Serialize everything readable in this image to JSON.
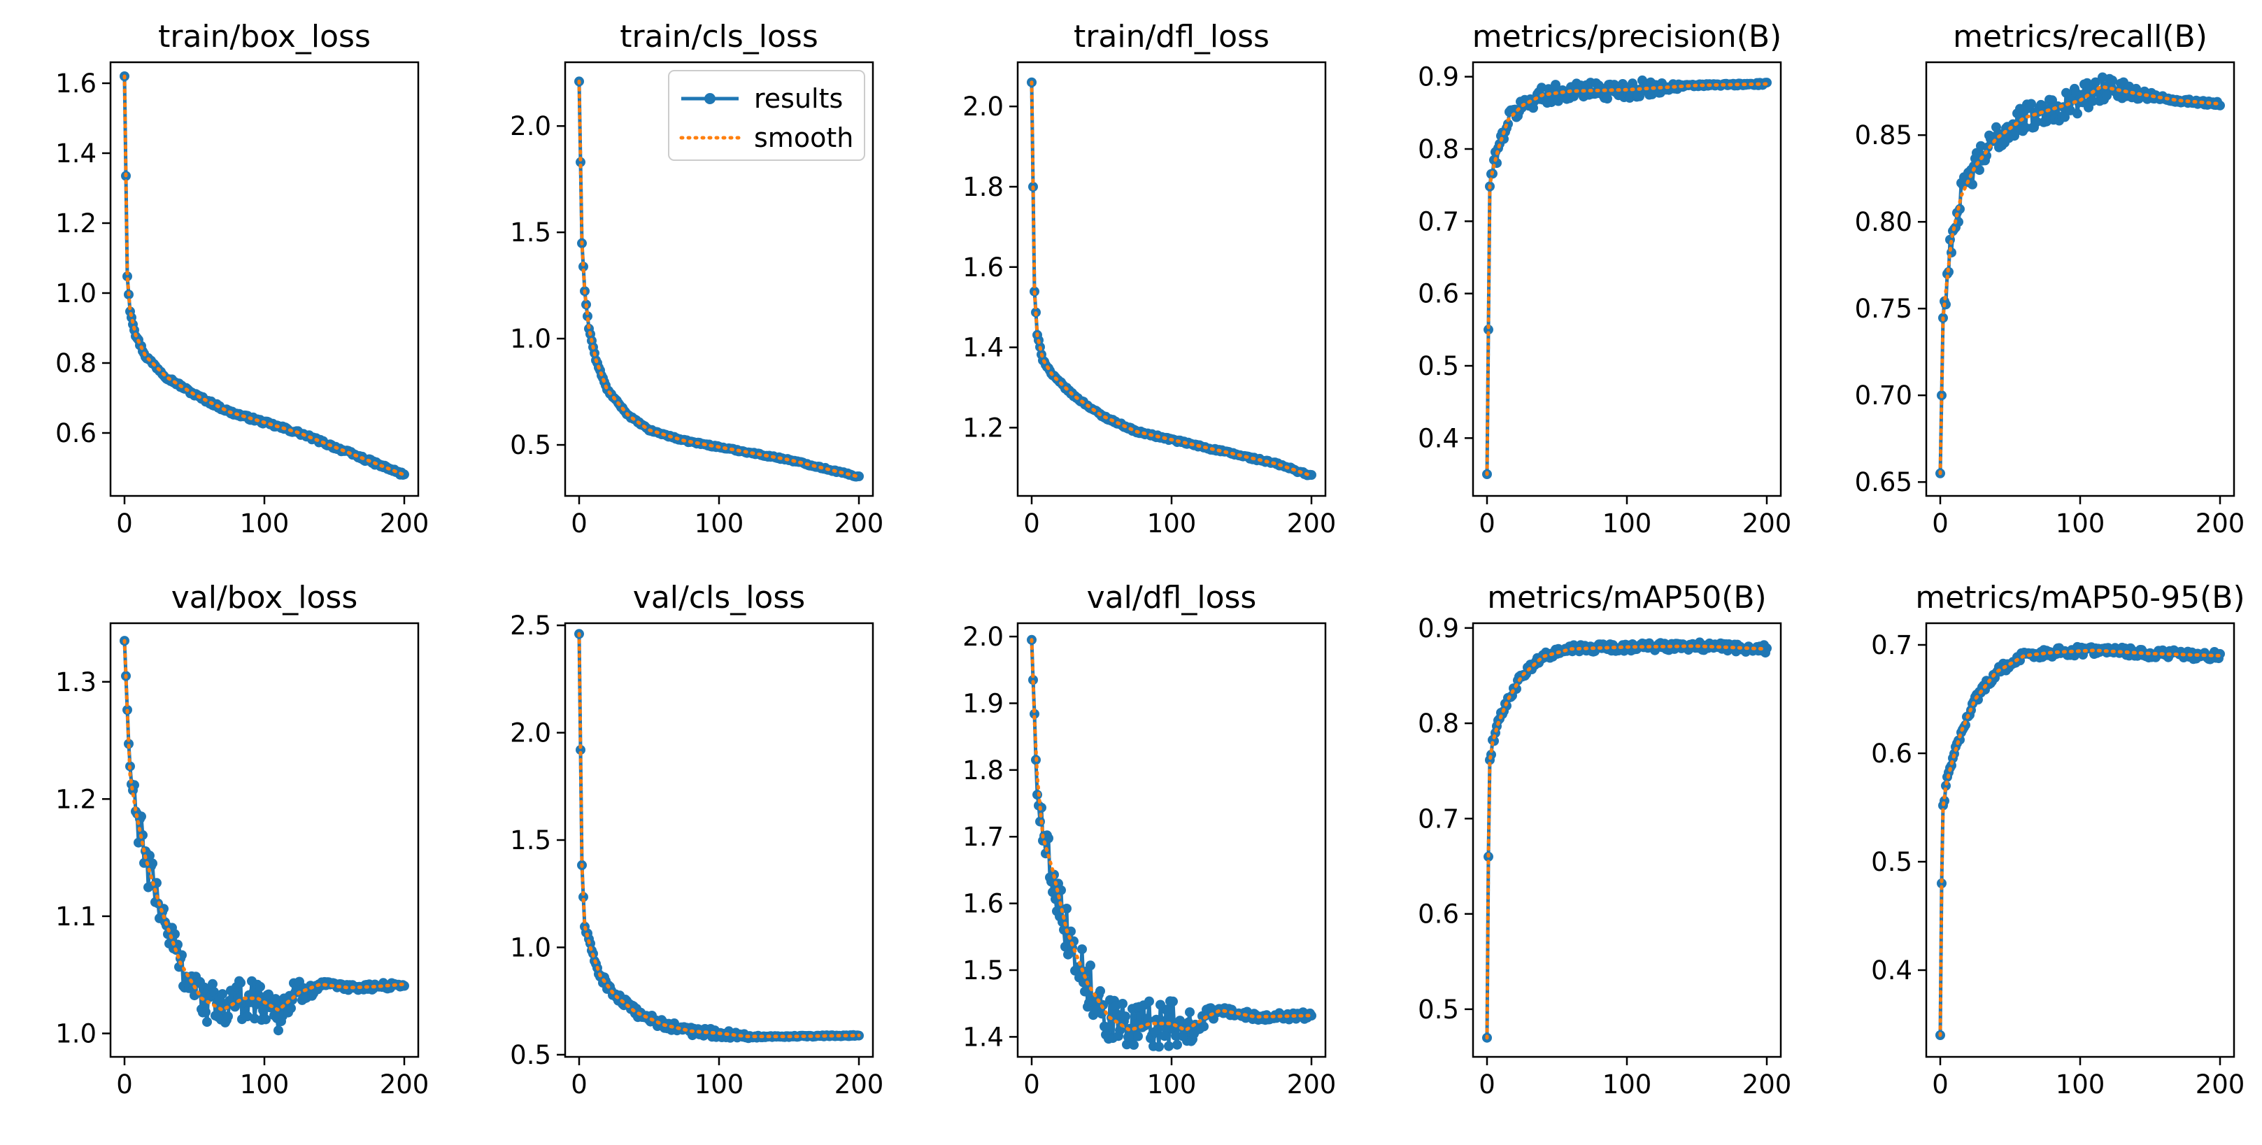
{
  "legend": {
    "results_label": "results",
    "smooth_label": "smooth"
  },
  "colors": {
    "results": "#1f77b4",
    "smooth": "#ff7f0e"
  },
  "chart_data": [
    {
      "type": "line",
      "title": "train/box_loss",
      "xlim": [
        -10,
        210
      ],
      "ylim": [
        0.42,
        1.66
      ],
      "xticks": [
        0,
        100,
        200
      ],
      "yticks": [
        0.6,
        0.8,
        1.0,
        1.2,
        1.4,
        1.6
      ],
      "ytick_labels": [
        "0.6",
        "0.8",
        "1.0",
        "1.2",
        "1.4",
        "1.6"
      ],
      "legend": false,
      "curve": {
        "start": 1.62,
        "end": 0.48,
        "kind": "decay",
        "knots": [
          [
            0,
            1.62
          ],
          [
            2,
            1.05
          ],
          [
            4,
            0.95
          ],
          [
            8,
            0.88
          ],
          [
            15,
            0.82
          ],
          [
            30,
            0.76
          ],
          [
            50,
            0.71
          ],
          [
            75,
            0.66
          ],
          [
            100,
            0.63
          ],
          [
            125,
            0.6
          ],
          [
            150,
            0.56
          ],
          [
            175,
            0.52
          ],
          [
            200,
            0.48
          ]
        ],
        "noise": 0.005
      }
    },
    {
      "type": "line",
      "title": "train/cls_loss",
      "xlim": [
        -10,
        210
      ],
      "ylim": [
        0.26,
        2.3
      ],
      "xticks": [
        0,
        100,
        200
      ],
      "yticks": [
        0.5,
        1.0,
        1.5,
        2.0
      ],
      "ytick_labels": [
        "0.5",
        "1.0",
        "1.5",
        "2.0"
      ],
      "legend": true,
      "curve": {
        "start": 2.21,
        "end": 0.35,
        "kind": "decay",
        "knots": [
          [
            0,
            2.21
          ],
          [
            2,
            1.45
          ],
          [
            4,
            1.22
          ],
          [
            7,
            1.05
          ],
          [
            12,
            0.9
          ],
          [
            20,
            0.76
          ],
          [
            35,
            0.64
          ],
          [
            50,
            0.57
          ],
          [
            75,
            0.52
          ],
          [
            100,
            0.49
          ],
          [
            125,
            0.46
          ],
          [
            150,
            0.43
          ],
          [
            175,
            0.39
          ],
          [
            200,
            0.35
          ]
        ],
        "noise": 0.004
      }
    },
    {
      "type": "line",
      "title": "train/dfl_loss",
      "xlim": [
        -10,
        210
      ],
      "ylim": [
        1.03,
        2.11
      ],
      "xticks": [
        0,
        100,
        200
      ],
      "yticks": [
        1.2,
        1.4,
        1.6,
        1.8,
        2.0
      ],
      "ytick_labels": [
        "1.2",
        "1.4",
        "1.6",
        "1.8",
        "2.0"
      ],
      "legend": false,
      "curve": {
        "start": 2.06,
        "end": 1.08,
        "kind": "decay",
        "knots": [
          [
            0,
            2.06
          ],
          [
            2,
            1.54
          ],
          [
            4,
            1.43
          ],
          [
            8,
            1.37
          ],
          [
            15,
            1.33
          ],
          [
            30,
            1.28
          ],
          [
            50,
            1.23
          ],
          [
            75,
            1.19
          ],
          [
            100,
            1.17
          ],
          [
            125,
            1.15
          ],
          [
            150,
            1.13
          ],
          [
            175,
            1.11
          ],
          [
            200,
            1.08
          ]
        ],
        "noise": 0.003
      }
    },
    {
      "type": "line",
      "title": "metrics/precision(B)",
      "xlim": [
        -10,
        210
      ],
      "ylim": [
        0.32,
        0.92
      ],
      "xticks": [
        0,
        100,
        200
      ],
      "yticks": [
        0.4,
        0.5,
        0.6,
        0.7,
        0.8,
        0.9
      ],
      "ytick_labels": [
        "0.4",
        "0.5",
        "0.6",
        "0.7",
        "0.8",
        "0.9"
      ],
      "legend": false,
      "curve": {
        "start": 0.35,
        "end": 0.89,
        "kind": "rise",
        "knots": [
          [
            0,
            0.35
          ],
          [
            1,
            0.55
          ],
          [
            2,
            0.75
          ],
          [
            4,
            0.77
          ],
          [
            8,
            0.8
          ],
          [
            15,
            0.84
          ],
          [
            25,
            0.86
          ],
          [
            40,
            0.875
          ],
          [
            60,
            0.88
          ],
          [
            100,
            0.882
          ],
          [
            150,
            0.888
          ],
          [
            200,
            0.89
          ]
        ],
        "noise": 0.012,
        "noise_decay_after": 110
      }
    },
    {
      "type": "line",
      "title": "metrics/recall(B)",
      "xlim": [
        -10,
        210
      ],
      "ylim": [
        0.642,
        0.892
      ],
      "xticks": [
        0,
        100,
        200
      ],
      "yticks": [
        0.65,
        0.7,
        0.75,
        0.8,
        0.85
      ],
      "ytick_labels": [
        "0.65",
        "0.70",
        "0.75",
        "0.80",
        "0.85"
      ],
      "legend": false,
      "curve": {
        "start": 0.655,
        "end": 0.868,
        "kind": "rise",
        "knots": [
          [
            0,
            0.655
          ],
          [
            1,
            0.7
          ],
          [
            2,
            0.745
          ],
          [
            4,
            0.76
          ],
          [
            8,
            0.79
          ],
          [
            15,
            0.815
          ],
          [
            25,
            0.832
          ],
          [
            40,
            0.848
          ],
          [
            60,
            0.86
          ],
          [
            80,
            0.865
          ],
          [
            100,
            0.87
          ],
          [
            115,
            0.878
          ],
          [
            140,
            0.874
          ],
          [
            170,
            0.87
          ],
          [
            200,
            0.868
          ]
        ],
        "noise": 0.008,
        "noise_decay_after": 120
      }
    },
    {
      "type": "line",
      "title": "val/box_loss",
      "xlim": [
        -10,
        210
      ],
      "ylim": [
        0.98,
        1.35
      ],
      "xticks": [
        0,
        100,
        200
      ],
      "yticks": [
        1.0,
        1.1,
        1.2,
        1.3
      ],
      "ytick_labels": [
        "1.0",
        "1.1",
        "1.2",
        "1.3"
      ],
      "legend": false,
      "curve": {
        "start": 1.335,
        "end": 1.042,
        "kind": "valley",
        "knots": [
          [
            0,
            1.335
          ],
          [
            2,
            1.275
          ],
          [
            4,
            1.22
          ],
          [
            8,
            1.19
          ],
          [
            15,
            1.15
          ],
          [
            25,
            1.11
          ],
          [
            40,
            1.06
          ],
          [
            55,
            1.03
          ],
          [
            70,
            1.02
          ],
          [
            85,
            1.03
          ],
          [
            95,
            1.03
          ],
          [
            110,
            1.02
          ],
          [
            125,
            1.035
          ],
          [
            140,
            1.042
          ],
          [
            160,
            1.039
          ],
          [
            180,
            1.04
          ],
          [
            200,
            1.042
          ]
        ],
        "noise": 0.018,
        "noise_decay_after": 110
      }
    },
    {
      "type": "line",
      "title": "val/cls_loss",
      "xlim": [
        -10,
        210
      ],
      "ylim": [
        0.49,
        2.51
      ],
      "xticks": [
        0,
        100,
        200
      ],
      "yticks": [
        0.5,
        1.0,
        1.5,
        2.0,
        2.5
      ],
      "ytick_labels": [
        "0.5",
        "1.0",
        "1.5",
        "2.0",
        "2.5"
      ],
      "legend": false,
      "curve": {
        "start": 2.46,
        "end": 0.59,
        "kind": "decay",
        "knots": [
          [
            0,
            2.46
          ],
          [
            2,
            1.38
          ],
          [
            4,
            1.1
          ],
          [
            8,
            1.0
          ],
          [
            15,
            0.87
          ],
          [
            25,
            0.78
          ],
          [
            40,
            0.7
          ],
          [
            60,
            0.64
          ],
          [
            80,
            0.61
          ],
          [
            100,
            0.6
          ],
          [
            120,
            0.585
          ],
          [
            150,
            0.585
          ],
          [
            200,
            0.59
          ]
        ],
        "noise": 0.02,
        "noise_decay_after": 100
      }
    },
    {
      "type": "line",
      "title": "val/dfl_loss",
      "xlim": [
        -10,
        210
      ],
      "ylim": [
        1.37,
        2.02
      ],
      "xticks": [
        0,
        100,
        200
      ],
      "yticks": [
        1.4,
        1.5,
        1.6,
        1.7,
        1.8,
        1.9,
        2.0
      ],
      "ytick_labels": [
        "1.4",
        "1.5",
        "1.6",
        "1.7",
        "1.8",
        "1.9",
        "2.0"
      ],
      "legend": false,
      "curve": {
        "start": 1.995,
        "end": 1.432,
        "kind": "valley",
        "knots": [
          [
            0,
            1.995
          ],
          [
            2,
            1.875
          ],
          [
            4,
            1.79
          ],
          [
            8,
            1.7
          ],
          [
            15,
            1.65
          ],
          [
            25,
            1.56
          ],
          [
            40,
            1.48
          ],
          [
            55,
            1.43
          ],
          [
            70,
            1.41
          ],
          [
            85,
            1.42
          ],
          [
            100,
            1.42
          ],
          [
            110,
            1.41
          ],
          [
            125,
            1.43
          ],
          [
            135,
            1.44
          ],
          [
            160,
            1.43
          ],
          [
            200,
            1.432
          ]
        ],
        "noise": 0.035,
        "noise_decay_after": 100
      }
    },
    {
      "type": "line",
      "title": "metrics/mAP50(B)",
      "xlim": [
        -10,
        210
      ],
      "ylim": [
        0.45,
        0.905
      ],
      "xticks": [
        0,
        100,
        200
      ],
      "yticks": [
        0.5,
        0.6,
        0.7,
        0.8,
        0.9
      ],
      "ytick_labels": [
        "0.5",
        "0.6",
        "0.7",
        "0.8",
        "0.9"
      ],
      "legend": false,
      "curve": {
        "start": 0.47,
        "end": 0.878,
        "kind": "rise",
        "knots": [
          [
            0,
            0.47
          ],
          [
            1,
            0.66
          ],
          [
            2,
            0.76
          ],
          [
            4,
            0.78
          ],
          [
            8,
            0.8
          ],
          [
            15,
            0.825
          ],
          [
            25,
            0.85
          ],
          [
            40,
            0.87
          ],
          [
            60,
            0.878
          ],
          [
            100,
            0.88
          ],
          [
            150,
            0.881
          ],
          [
            200,
            0.878
          ]
        ],
        "noise": 0.004
      }
    },
    {
      "type": "line",
      "title": "metrics/mAP50-95(B)",
      "xlim": [
        -10,
        210
      ],
      "ylim": [
        0.32,
        0.72
      ],
      "xticks": [
        0,
        100,
        200
      ],
      "yticks": [
        0.4,
        0.5,
        0.6,
        0.7
      ],
      "ytick_labels": [
        "0.4",
        "0.5",
        "0.6",
        "0.7"
      ],
      "legend": false,
      "curve": {
        "start": 0.34,
        "end": 0.69,
        "kind": "rise",
        "knots": [
          [
            0,
            0.34
          ],
          [
            1,
            0.48
          ],
          [
            2,
            0.55
          ],
          [
            4,
            0.57
          ],
          [
            8,
            0.59
          ],
          [
            15,
            0.62
          ],
          [
            25,
            0.65
          ],
          [
            40,
            0.675
          ],
          [
            60,
            0.69
          ],
          [
            80,
            0.693
          ],
          [
            110,
            0.695
          ],
          [
            150,
            0.692
          ],
          [
            200,
            0.69
          ]
        ],
        "noise": 0.004
      }
    }
  ]
}
